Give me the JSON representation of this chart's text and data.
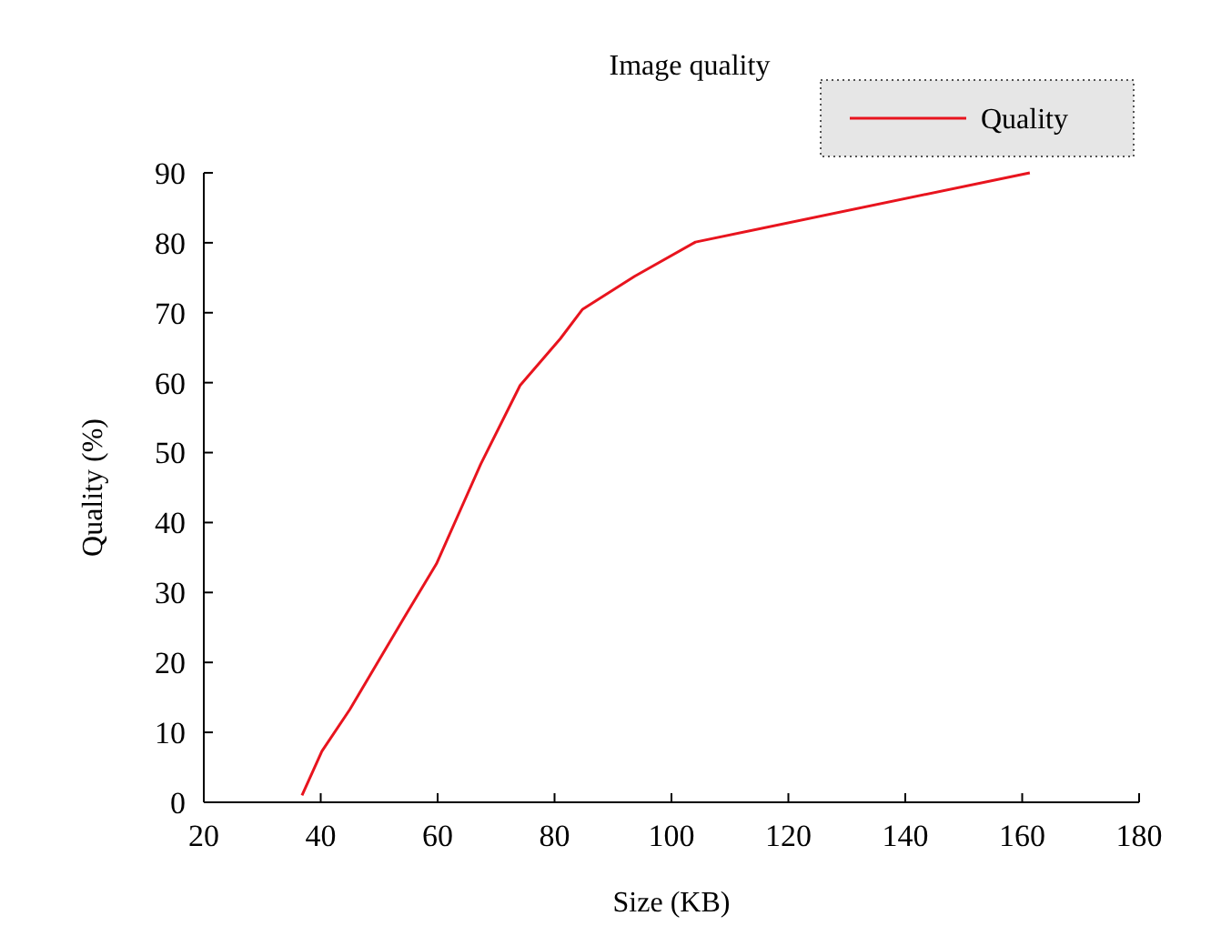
{
  "chart_data": {
    "type": "line",
    "title": "Image quality",
    "xlabel": "Size (KB)",
    "ylabel": "Quality (%)",
    "x": [
      36.8,
      40.2,
      45,
      54.2,
      59.8,
      67.4,
      74.1,
      81,
      84.8,
      93.7,
      104.1,
      161.3
    ],
    "series": [
      {
        "name": "Quality",
        "color": "#e8141e",
        "values": [
          1.0,
          7.3,
          13.3,
          26.3,
          34.1,
          48.4,
          59.6,
          66.3,
          70.5,
          75.2,
          80.1,
          90.0
        ]
      }
    ],
    "xlim": [
      20,
      180
    ],
    "xticks": [
      20,
      40,
      60,
      80,
      100,
      120,
      140,
      160,
      180
    ],
    "ylim": [
      0,
      90
    ],
    "yticks": [
      0,
      10,
      20,
      30,
      40,
      50,
      60,
      70,
      80,
      90
    ],
    "grid": false,
    "legend": "top right",
    "marker": "none",
    "line_style": "solid"
  }
}
